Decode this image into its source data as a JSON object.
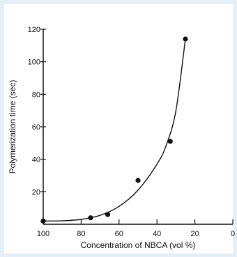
{
  "chart_data": {
    "type": "scatter",
    "title": "",
    "xlabel": "Concentration of NBCA (vol %)",
    "ylabel": "Polymerization time (sec)",
    "xlim": [
      100,
      0
    ],
    "ylim": [
      0,
      120
    ],
    "x_reversed": true,
    "x_ticks": [
      100,
      80,
      60,
      40,
      20,
      0
    ],
    "y_ticks": [
      20,
      40,
      60,
      80,
      100,
      120
    ],
    "grid": false,
    "series": [
      {
        "marker": "filled-circle",
        "x": [
          100,
          75,
          66,
          50,
          33,
          25
        ],
        "y": [
          2,
          4,
          6,
          27,
          51,
          114
        ]
      }
    ],
    "fit_curve": {
      "style": "smooth-line",
      "x": [
        100,
        90,
        80,
        70,
        60,
        50,
        40,
        35,
        30,
        25
      ],
      "y": [
        2,
        2.1,
        3,
        5.5,
        11,
        21,
        37,
        49,
        70,
        114
      ]
    },
    "colors": {
      "ink": "#111111",
      "background": "#e6eff8",
      "plot_bg": "#ffffff"
    }
  }
}
